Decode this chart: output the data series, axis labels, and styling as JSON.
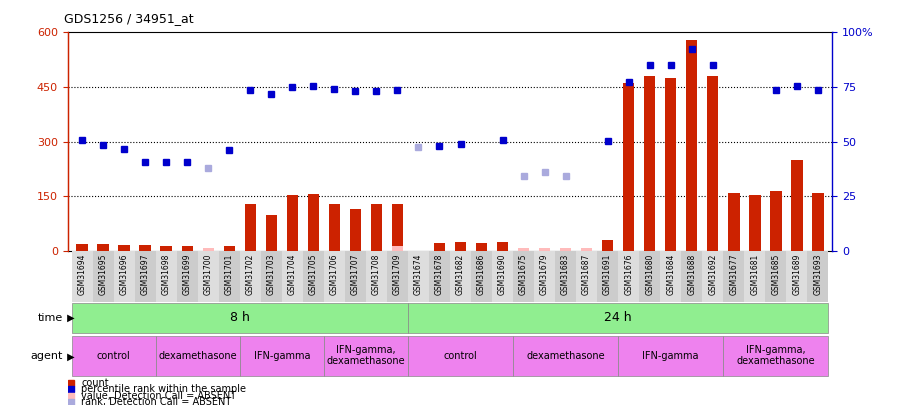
{
  "title": "GDS1256 / 34951_at",
  "samples": [
    "GSM31694",
    "GSM31695",
    "GSM31696",
    "GSM31697",
    "GSM31698",
    "GSM31699",
    "GSM31700",
    "GSM31701",
    "GSM31702",
    "GSM31703",
    "GSM31704",
    "GSM31705",
    "GSM31706",
    "GSM31707",
    "GSM31708",
    "GSM31709",
    "GSM31674",
    "GSM31678",
    "GSM31682",
    "GSM31686",
    "GSM31690",
    "GSM31675",
    "GSM31679",
    "GSM31683",
    "GSM31687",
    "GSM31691",
    "GSM31676",
    "GSM31680",
    "GSM31684",
    "GSM31688",
    "GSM31692",
    "GSM31677",
    "GSM31681",
    "GSM31685",
    "GSM31689",
    "GSM31693"
  ],
  "count": [
    20,
    20,
    18,
    16,
    15,
    13,
    null,
    13,
    130,
    100,
    155,
    158,
    130,
    115,
    130,
    130,
    null,
    22,
    25,
    22,
    25,
    null,
    null,
    null,
    null,
    30,
    460,
    480,
    475,
    580,
    480,
    160,
    155,
    165,
    250,
    160
  ],
  "absent_count": [
    null,
    null,
    null,
    null,
    null,
    null,
    8,
    null,
    null,
    null,
    null,
    null,
    null,
    null,
    null,
    15,
    null,
    null,
    null,
    null,
    null,
    8,
    8,
    8,
    8,
    null,
    null,
    null,
    null,
    null,
    null,
    null,
    null,
    null,
    null,
    null
  ],
  "rank": [
    305,
    292,
    280,
    245,
    245,
    245,
    null,
    278,
    443,
    430,
    450,
    452,
    445,
    438,
    438,
    443,
    null,
    287,
    293,
    null,
    305,
    null,
    null,
    null,
    null,
    302,
    463,
    510,
    510,
    555,
    510,
    null,
    null,
    443,
    452,
    443
  ],
  "absent_rank": [
    null,
    null,
    null,
    null,
    null,
    null,
    228,
    null,
    null,
    null,
    null,
    null,
    null,
    null,
    null,
    null,
    285,
    null,
    null,
    null,
    null,
    205,
    218,
    205,
    null,
    null,
    null,
    null,
    null,
    null,
    null,
    null,
    null,
    null,
    null,
    null
  ],
  "time_groups": [
    {
      "label": "8 h",
      "start": 0,
      "end": 16,
      "color": "#90ee90"
    },
    {
      "label": "24 h",
      "start": 16,
      "end": 36,
      "color": "#90ee90"
    }
  ],
  "agent_groups": [
    {
      "label": "control",
      "start": 0,
      "end": 4,
      "color": "#ee82ee"
    },
    {
      "label": "dexamethasone",
      "start": 4,
      "end": 8,
      "color": "#ee82ee"
    },
    {
      "label": "IFN-gamma",
      "start": 8,
      "end": 12,
      "color": "#ee82ee"
    },
    {
      "label": "IFN-gamma,\ndexamethasone",
      "start": 12,
      "end": 16,
      "color": "#ee82ee"
    },
    {
      "label": "control",
      "start": 16,
      "end": 21,
      "color": "#ee82ee"
    },
    {
      "label": "dexamethasone",
      "start": 21,
      "end": 26,
      "color": "#ee82ee"
    },
    {
      "label": "IFN-gamma",
      "start": 26,
      "end": 31,
      "color": "#ee82ee"
    },
    {
      "label": "IFN-gamma,\ndexamethasone",
      "start": 31,
      "end": 36,
      "color": "#ee82ee"
    }
  ],
  "left_ylim": [
    0,
    600
  ],
  "left_yticks": [
    0,
    150,
    300,
    450,
    600
  ],
  "right_yticklabels": [
    "0",
    "25",
    "50",
    "75",
    "100%"
  ],
  "bar_color": "#cc2200",
  "bar_absent_color": "#ffbbbb",
  "rank_color": "#0000cc",
  "rank_absent_color": "#aaaadd",
  "bar_width": 0.55
}
